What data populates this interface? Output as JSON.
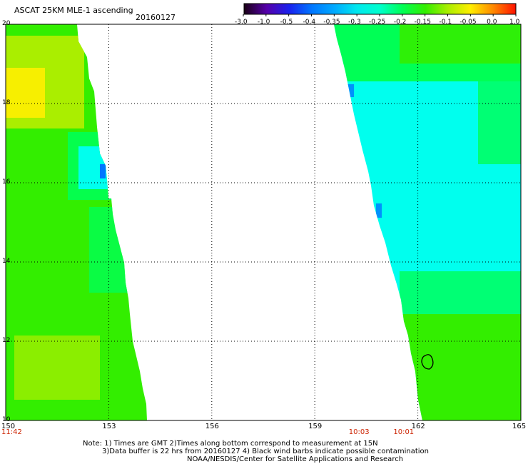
{
  "header": {
    "title": "ASCAT 25KM MLE-1 ascending",
    "date": "20160127"
  },
  "colorbar": {
    "tick_labels": [
      "-3.0",
      "-1.0",
      "-0.5",
      "-0.4",
      "-0.35",
      "-0.3",
      "-0.25",
      "-0.2",
      "-0.15",
      "-0.1",
      "-0.05",
      "0.0",
      "1.0"
    ],
    "colors": [
      "#1a0015",
      "#5500aa",
      "#1a22ee",
      "#0077ff",
      "#00aaff",
      "#00e8ee",
      "#00ffcc",
      "#00ff55",
      "#33ee00",
      "#aaee00",
      "#ffee00",
      "#ff8800",
      "#ff1100"
    ]
  },
  "map": {
    "lon_ticks": [
      "150",
      "153",
      "156",
      "159",
      "162",
      "165"
    ],
    "lat_ticks": [
      "20",
      "18",
      "16",
      "14",
      "12",
      "10"
    ],
    "pass_times": [
      {
        "label": "11:42",
        "lon": 150
      },
      {
        "label": "10:03",
        "lon": 160.3
      },
      {
        "label": "10:01",
        "lon": 161.6
      }
    ],
    "contour_note": "black contour near 162.3E 11.6N",
    "palette": {
      "yellow": "#ffee00",
      "yellow_green": "#aaee00",
      "green": "#33ee00",
      "green_cyan": "#00ff55",
      "cyan": "#00ffee",
      "blue": "#0077ff"
    }
  },
  "notes": {
    "line1": "Note: 1) Times are GMT 2)Times along bottom correspond to measurement at 15N",
    "line2": "3)Data buffer is 22 hrs from 20160127 4) Black wind barbs indicate possible contamination",
    "line3": "NOAA/NESDIS/Center for Satellite Applications and Research"
  }
}
